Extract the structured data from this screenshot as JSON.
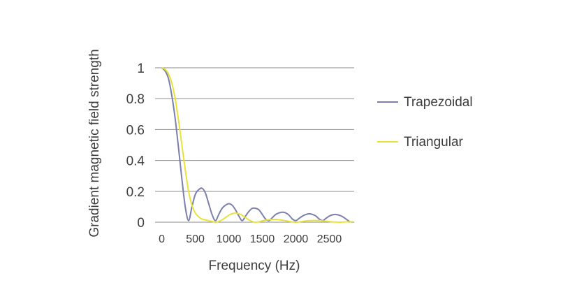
{
  "chart_data": {
    "type": "line",
    "xlabel": "Frequency (Hz)",
    "ylabel": "Gradient magnetic field strength",
    "xlim": [
      -100,
      2870
    ],
    "ylim": [
      0,
      1
    ],
    "x_ticks": [
      0,
      500,
      1000,
      1500,
      2000,
      2500
    ],
    "x_tick_labels": [
      "0",
      "500",
      "1000",
      "1500",
      "2000",
      "2500"
    ],
    "y_ticks": [
      0,
      0.2,
      0.4,
      0.6,
      0.8,
      1
    ],
    "y_tick_labels": [
      "0",
      "0.2",
      "0.4",
      "0.6",
      "0.8",
      "1"
    ],
    "grid": "horizontal",
    "legend_position": "right",
    "series": [
      {
        "name": "Trapezoidal",
        "color": "#7b7fad",
        "x": [
          0,
          50,
          100,
          150,
          200,
          250,
          300,
          350,
          400,
          450,
          500,
          550,
          600,
          650,
          700,
          750,
          800,
          850,
          900,
          950,
          1000,
          1050,
          1100,
          1150,
          1200,
          1250,
          1300,
          1350,
          1400,
          1450,
          1500,
          1550,
          1600,
          1650,
          1700,
          1750,
          1800,
          1850,
          1900,
          1950,
          2000,
          2050,
          2100,
          2150,
          2200,
          2250,
          2300,
          2350,
          2400,
          2450,
          2500,
          2550,
          2600,
          2650,
          2700,
          2750,
          2800,
          2850
        ],
        "y": [
          1.0,
          0.98,
          0.93,
          0.82,
          0.67,
          0.48,
          0.28,
          0.1,
          0.01,
          0.1,
          0.18,
          0.21,
          0.22,
          0.19,
          0.12,
          0.05,
          0.01,
          0.05,
          0.09,
          0.11,
          0.12,
          0.11,
          0.08,
          0.04,
          0.01,
          0.04,
          0.07,
          0.09,
          0.09,
          0.08,
          0.05,
          0.02,
          0.01,
          0.03,
          0.05,
          0.06,
          0.065,
          0.06,
          0.045,
          0.02,
          0.01,
          0.025,
          0.04,
          0.05,
          0.055,
          0.05,
          0.04,
          0.02,
          0.01,
          0.025,
          0.04,
          0.048,
          0.05,
          0.045,
          0.035,
          0.02,
          0.005,
          0.0
        ]
      },
      {
        "name": "Triangular",
        "color": "#e8e23a",
        "x": [
          0,
          50,
          100,
          150,
          200,
          250,
          300,
          350,
          400,
          450,
          500,
          550,
          600,
          650,
          700,
          750,
          800,
          850,
          900,
          950,
          1000,
          1050,
          1100,
          1150,
          1200,
          1250,
          1300,
          1350,
          1400,
          1450,
          1500,
          1550,
          1600,
          1650,
          1700,
          1750,
          1800,
          1850,
          1900,
          1950,
          2000,
          2050,
          2100,
          2150,
          2200,
          2250,
          2300,
          2350,
          2400,
          2450,
          2500,
          2550,
          2600,
          2650,
          2700,
          2750,
          2800,
          2850
        ],
        "y": [
          1.0,
          0.99,
          0.96,
          0.9,
          0.8,
          0.66,
          0.5,
          0.34,
          0.2,
          0.11,
          0.06,
          0.035,
          0.02,
          0.015,
          0.01,
          0.005,
          0.0,
          0.005,
          0.015,
          0.03,
          0.045,
          0.055,
          0.058,
          0.055,
          0.045,
          0.03,
          0.015,
          0.005,
          0.0,
          0.003,
          0.008,
          0.013,
          0.016,
          0.018,
          0.018,
          0.016,
          0.013,
          0.009,
          0.005,
          0.002,
          0.0,
          0.002,
          0.005,
          0.008,
          0.01,
          0.011,
          0.011,
          0.01,
          0.008,
          0.006,
          0.004,
          0.002,
          0.001,
          0.0,
          0.001,
          0.002,
          0.003,
          0.002
        ]
      }
    ]
  }
}
